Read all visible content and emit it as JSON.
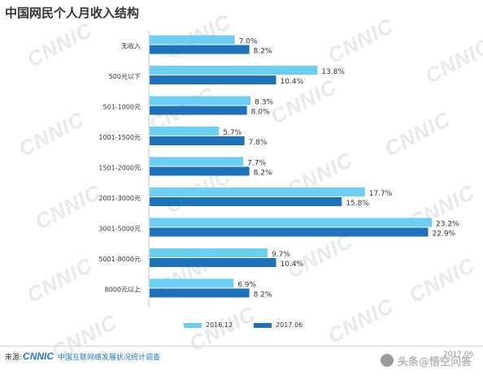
{
  "title": "中国网民个人月收入结构",
  "footer": {
    "source_prefix": "来源:",
    "brand": "CNNIC",
    "survey": "中国互联网络发展状况统计调查",
    "date": "2017.06"
  },
  "watermark_text": "CNNIC",
  "overlay_logo_text": "头条@悟空问答",
  "colors": {
    "series_2016": "#6ccef0",
    "series_2017": "#1d72ba"
  },
  "chart_data": {
    "type": "bar",
    "orientation": "horizontal",
    "title": "中国网民个人月收入结构",
    "categories": [
      "无收入",
      "500元以下",
      "501-1000元",
      "1001-1500元",
      "1501-2000元",
      "2001-3000元",
      "3001-5000元",
      "5001-8000元",
      "8000元以上"
    ],
    "series": [
      {
        "name": "2016.12",
        "color": "#6ccef0",
        "values": [
          7.0,
          13.8,
          8.3,
          5.7,
          7.7,
          17.7,
          23.2,
          9.7,
          6.9
        ]
      },
      {
        "name": "2017.06",
        "color": "#1d72ba",
        "values": [
          8.2,
          10.4,
          8.0,
          7.8,
          8.2,
          15.8,
          22.9,
          10.4,
          8.2
        ]
      }
    ],
    "value_suffix": "%",
    "xlim": [
      0,
      23.2
    ],
    "grid": false,
    "legend_position": "bottom-center"
  }
}
